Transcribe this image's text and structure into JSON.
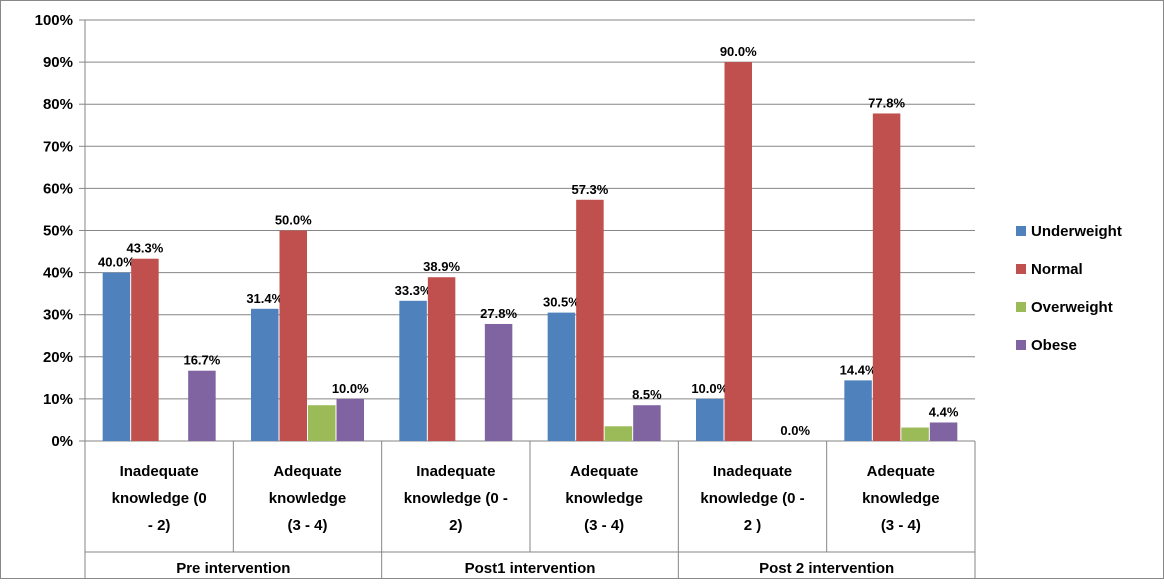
{
  "chart_data": {
    "type": "bar",
    "ylim": [
      0,
      100
    ],
    "yticks": [
      "0%",
      "10%",
      "20%",
      "30%",
      "40%",
      "50%",
      "60%",
      "70%",
      "80%",
      "90%",
      "100%"
    ],
    "grid": true,
    "legend_position": "right",
    "groups": [
      "Pre intervention",
      "Post1 intervention",
      "Post 2  intervention"
    ],
    "categories": [
      {
        "group": 0,
        "lines": [
          "Inadequate",
          "knowledge  (0",
          "- 2)"
        ]
      },
      {
        "group": 0,
        "lines": [
          "Adequate",
          "knowledge",
          "(3 - 4)"
        ]
      },
      {
        "group": 1,
        "lines": [
          "Inadequate",
          "knowledge (0 -",
          "2)"
        ]
      },
      {
        "group": 1,
        "lines": [
          "Adequate",
          "knowledge",
          "(3 - 4)"
        ]
      },
      {
        "group": 2,
        "lines": [
          "Inadequate",
          "knowledge (0 -",
          "2 )"
        ]
      },
      {
        "group": 2,
        "lines": [
          "Adequate",
          "knowledge",
          "(3 - 4)"
        ]
      }
    ],
    "series": [
      {
        "name": "Underweight",
        "color": "#4f81bd",
        "values": [
          40.0,
          31.4,
          33.3,
          30.5,
          10.0,
          14.4
        ],
        "labels": [
          "40.0%",
          "31.4%",
          "33.3%",
          "30.5%",
          "10.0%",
          "14.4%"
        ]
      },
      {
        "name": "Normal",
        "color": "#c0504d",
        "values": [
          43.3,
          50.0,
          38.9,
          57.3,
          90.0,
          77.8
        ],
        "labels": [
          "43.3%",
          "50.0%",
          "38.9%",
          "57.3%",
          "90.0%",
          "77.8%"
        ]
      },
      {
        "name": "Overweight",
        "color": "#9bbb59",
        "values": [
          0,
          8.5,
          0,
          3.5,
          0,
          3.2
        ],
        "labels": [
          "",
          "",
          "",
          "",
          "",
          ""
        ]
      },
      {
        "name": "Obese",
        "color": "#8064a2",
        "values": [
          16.7,
          10.0,
          27.8,
          8.5,
          0.0,
          4.4
        ],
        "labels": [
          "16.7%",
          "10.0%",
          "27.8%",
          "8.5%",
          "0.0%",
          "4.4%"
        ]
      }
    ]
  }
}
